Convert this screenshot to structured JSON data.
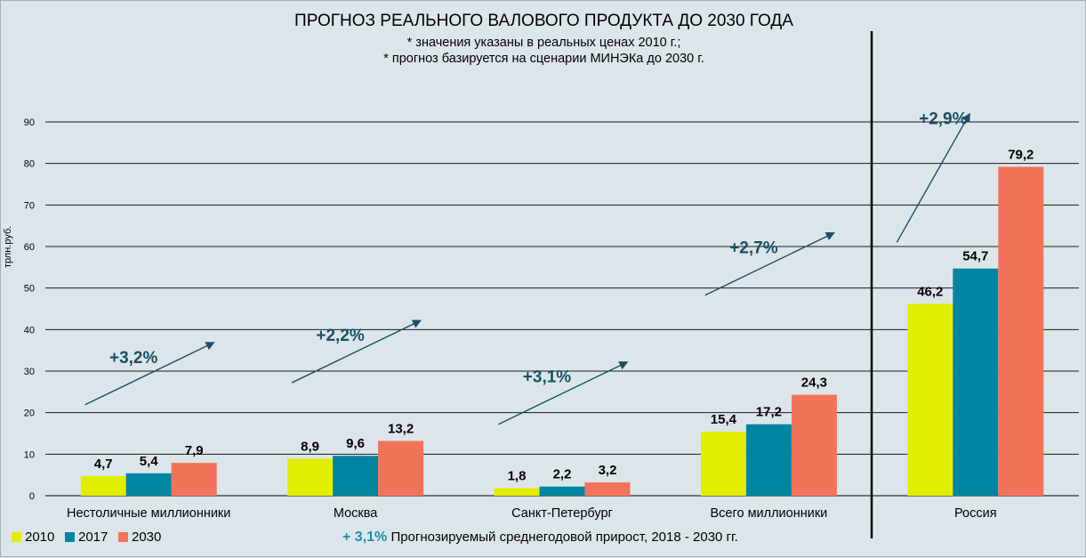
{
  "chart_data": {
    "type": "bar",
    "title": "ПРОГНОЗ РЕАЛЬНОГО ВАЛОВОГО ПРОДУКТА ДО 2030 ГОДА",
    "subtitle_lines": [
      "* значения указаны в реальных ценах 2010 г.;",
      "* прогноз базируется на сценарии МИНЭКа до 2030 г."
    ],
    "ylabel": "трлн.руб.",
    "xlabel": "",
    "ylim": [
      0,
      90
    ],
    "yticks": [
      0,
      10,
      20,
      30,
      40,
      50,
      60,
      70,
      80,
      90
    ],
    "grid": true,
    "categories": [
      "Нестоличные миллионники",
      "Москва",
      "Санкт-Петербург",
      "Всего миллионники",
      "Россия"
    ],
    "series": [
      {
        "name": "2010",
        "color": "#e2ee00",
        "values": [
          4.7,
          8.9,
          1.8,
          15.4,
          46.2
        ],
        "labels": [
          "4,7",
          "8,9",
          "1,8",
          "15,4",
          "46,2"
        ]
      },
      {
        "name": "2017",
        "color": "#0086a3",
        "values": [
          5.4,
          9.6,
          2.2,
          17.2,
          54.7
        ],
        "labels": [
          "5,4",
          "9,6",
          "2,2",
          "17,2",
          "54,7"
        ]
      },
      {
        "name": "2030",
        "color": "#f3735a",
        "values": [
          7.9,
          13.2,
          3.2,
          24.3,
          79.2
        ],
        "labels": [
          "7,9",
          "13,2",
          "3,2",
          "24,3",
          "79,2"
        ]
      }
    ],
    "growth_annotations": [
      "+3,2%",
      "+2,2%",
      "+3,1%",
      "+2,7%",
      "+2,9%"
    ],
    "legend_position": "bottom-left"
  },
  "note": {
    "pct": "+ 3,1%",
    "text": "Прогнозируемый среднегодовой прирост, 2018 - 2030 гг."
  },
  "colors": {
    "background": "#dce6ea",
    "grid": "#1a1a1a",
    "arrow": "#1b4f63",
    "annotation_text": "#1b4f63",
    "note_pct": "#1e8fa8"
  }
}
